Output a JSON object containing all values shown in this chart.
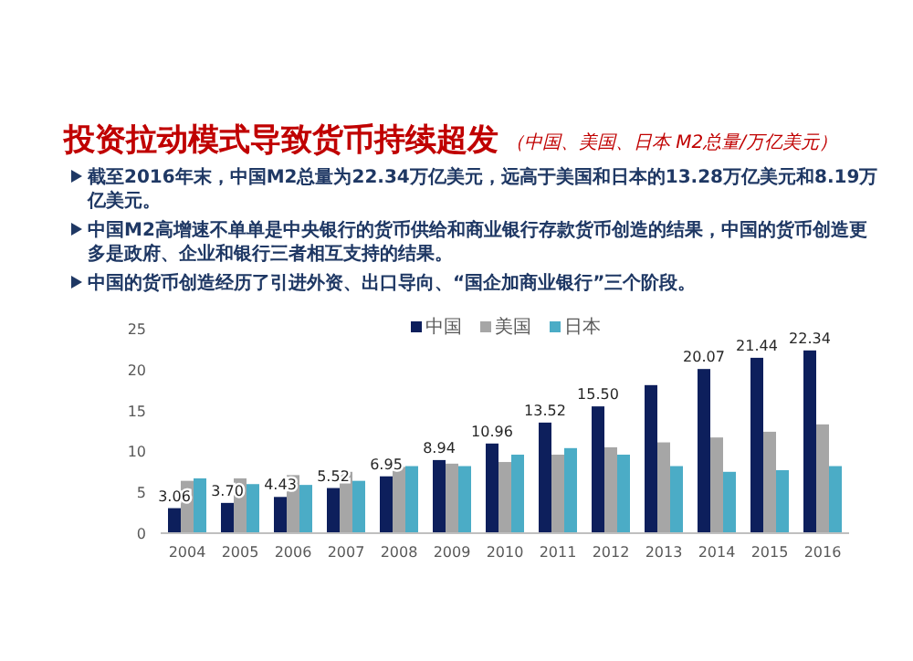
{
  "chart_data": {
    "type": "bar",
    "title": "投资拉动模式导致货币持续超发",
    "subtitle": "（中国、美国、日本 M2总量/万亿美元）",
    "annotations": [
      "截至2016年末，中国M2总量为22.34万亿美元，远高于美国和日本的13.28万亿美元和8.19万亿美元。",
      "中国M2高增速不单单是中央银行的货币供给和商业银行存款货币创造的结果，中国的货币创造更多是政府、企业和银行三者相互支持的结果。",
      "中国的货币创造经历了引进外资、出口导向、“国企加商业银行”三个阶段。"
    ],
    "categories": [
      "2004",
      "2005",
      "2006",
      "2007",
      "2008",
      "2009",
      "2010",
      "2011",
      "2012",
      "2013",
      "2014",
      "2015",
      "2016"
    ],
    "series": [
      {
        "name": "中国",
        "color": "#0d1f5c",
        "values": [
          3.06,
          3.7,
          4.43,
          5.52,
          6.95,
          8.94,
          10.96,
          13.52,
          15.5,
          18.1,
          20.07,
          21.44,
          22.34
        ],
        "value_labels": [
          "3.06",
          "3.70",
          "4.43",
          "5.52",
          "6.95",
          "8.94",
          "10.96",
          "13.52",
          "15.50",
          null,
          "20.07",
          "21.44",
          "22.34"
        ]
      },
      {
        "name": "美国",
        "color": "#a6a6a6",
        "values": [
          6.4,
          6.7,
          7.1,
          7.5,
          8.1,
          8.5,
          8.7,
          9.6,
          10.5,
          11.1,
          11.7,
          12.4,
          13.3
        ]
      },
      {
        "name": "日本",
        "color": "#4bacc6",
        "values": [
          6.7,
          6.0,
          5.9,
          6.4,
          8.2,
          8.2,
          9.6,
          10.4,
          9.6,
          8.2,
          7.5,
          7.7,
          8.2
        ]
      }
    ],
    "ylim": [
      0,
      25
    ],
    "yticks": [
      0,
      5,
      10,
      15,
      20,
      25
    ],
    "legend": "top right"
  }
}
